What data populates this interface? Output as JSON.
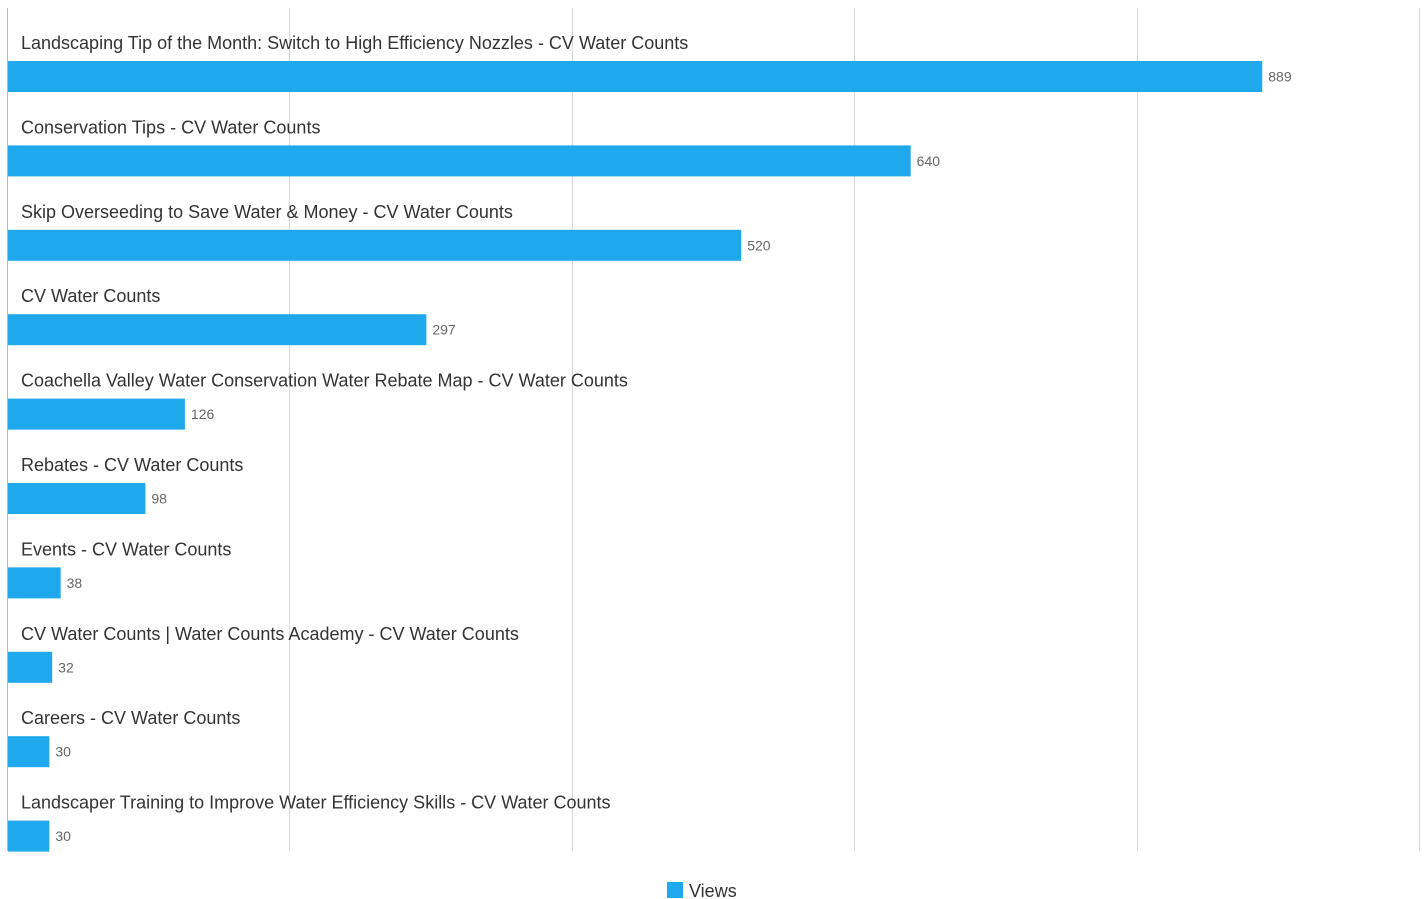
{
  "chart_data": {
    "type": "bar",
    "orientation": "horizontal",
    "categories": [
      "Landscaping Tip of the Month: Switch to High Efficiency Nozzles - CV Water Counts",
      "Conservation Tips - CV Water Counts",
      "Skip Overseeding to Save Water & Money - CV Water Counts",
      "CV Water Counts",
      "Coachella Valley Water Conservation Water Rebate Map - CV Water Counts",
      "Rebates - CV Water Counts",
      "Events - CV Water Counts",
      "CV Water Counts | Water Counts Academy - CV Water Counts",
      "Careers - CV Water Counts",
      "Landscaper Training to Improve Water Efficiency Skills - CV Water Counts"
    ],
    "series": [
      {
        "name": "Views",
        "color": "#1fa8ec",
        "values": [
          889,
          640,
          520,
          297,
          126,
          98,
          38,
          32,
          30,
          30
        ]
      }
    ],
    "xlim": [
      0,
      1000
    ],
    "grid": true,
    "legend_position": "bottom-center",
    "data_labels": true
  }
}
